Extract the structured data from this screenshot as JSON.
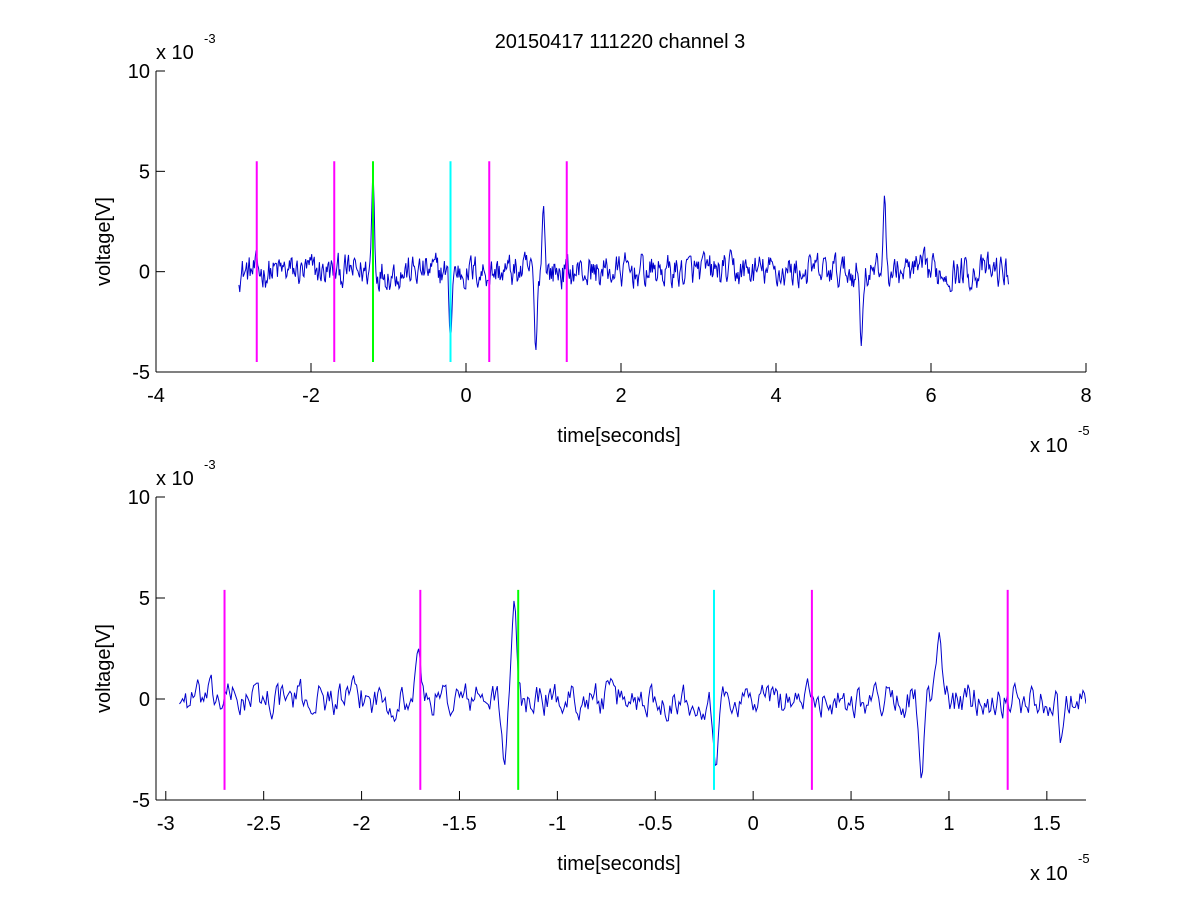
{
  "figure": {
    "title": "20150417 111220 channel 3"
  },
  "chart_data": [
    {
      "type": "line",
      "title": "20150417 111220 channel 3",
      "xlabel": "time[seconds]",
      "ylabel": "voltage[V]",
      "x_exponent_label": "x 10",
      "x_exponent": "-5",
      "y_exponent_label": "x 10",
      "y_exponent": "-3",
      "xlim": [
        -4,
        8
      ],
      "ylim": [
        -5,
        10
      ],
      "xticks": [
        -4,
        -2,
        0,
        2,
        4,
        6,
        8
      ],
      "xtick_labels": [
        "-4",
        "-2",
        "0",
        "2",
        "4",
        "6",
        "8"
      ],
      "yticks": [
        -5,
        0,
        5,
        10
      ],
      "ytick_labels": [
        "-5",
        "0",
        "5",
        "10"
      ],
      "grid": false,
      "signal": {
        "color": "#0000cc",
        "x_range": [
          -2.93,
          7.0
        ],
        "y_range": [
          -3.9,
          4.8
        ],
        "approx_samples": 900,
        "features": [
          {
            "x": -1.2,
            "y": 4.8
          },
          {
            "x": -0.2,
            "y": -3.4
          },
          {
            "x": 0.9,
            "y": -4.0
          },
          {
            "x": 1.0,
            "y": 3.3
          },
          {
            "x": 5.4,
            "y": 3.8
          },
          {
            "x": 5.1,
            "y": -3.7
          }
        ]
      },
      "markers": [
        {
          "x": -2.7,
          "y_range": [
            -4.5,
            5.5
          ],
          "color": "#ff00ff"
        },
        {
          "x": -1.7,
          "y_range": [
            -4.5,
            5.5
          ],
          "color": "#ff00ff"
        },
        {
          "x": -1.2,
          "y_range": [
            -4.5,
            5.5
          ],
          "color": "#00ff00"
        },
        {
          "x": -0.2,
          "y_range": [
            -4.5,
            5.5
          ],
          "color": "#00ffff"
        },
        {
          "x": 0.3,
          "y_range": [
            -4.5,
            5.5
          ],
          "color": "#ff00ff"
        },
        {
          "x": 1.3,
          "y_range": [
            -4.5,
            5.5
          ],
          "color": "#ff00ff"
        }
      ]
    },
    {
      "type": "line",
      "title": "",
      "xlabel": "time[seconds]",
      "ylabel": "voltage[V]",
      "x_exponent_label": "x 10",
      "x_exponent": "-5",
      "y_exponent_label": "x 10",
      "y_exponent": "-3",
      "xlim": [
        -3.05,
        1.7
      ],
      "ylim": [
        -5,
        10
      ],
      "xticks": [
        -3,
        -2.5,
        -2,
        -1.5,
        -1,
        -0.5,
        0,
        0.5,
        1,
        1.5
      ],
      "xtick_labels": [
        "-3",
        "-2.5",
        "-2",
        "-1.5",
        "-1",
        "-0.5",
        "0",
        "0.5",
        "1",
        "1.5"
      ],
      "yticks": [
        -5,
        0,
        5,
        10
      ],
      "ytick_labels": [
        "-5",
        "0",
        "5",
        "10"
      ],
      "grid": false,
      "signal": {
        "color": "#0000cc",
        "x_range": [
          -2.93,
          1.7
        ],
        "y_range": [
          -4.0,
          4.9
        ],
        "approx_samples": 600,
        "features": [
          {
            "x": -1.71,
            "y": 2.5
          },
          {
            "x": -1.27,
            "y": -3.3
          },
          {
            "x": -1.22,
            "y": 4.9
          },
          {
            "x": -0.19,
            "y": -3.4
          },
          {
            "x": 0.86,
            "y": -4.0
          },
          {
            "x": 0.95,
            "y": 3.3
          },
          {
            "x": 1.56,
            "y": 2.0
          },
          {
            "x": 1.57,
            "y": -2.2
          }
        ]
      },
      "markers": [
        {
          "x": -2.7,
          "y_range": [
            -4.5,
            5.4
          ],
          "color": "#ff00ff"
        },
        {
          "x": -1.7,
          "y_range": [
            -4.5,
            5.4
          ],
          "color": "#ff00ff"
        },
        {
          "x": -1.2,
          "y_range": [
            -4.5,
            5.4
          ],
          "color": "#00ff00"
        },
        {
          "x": -0.2,
          "y_range": [
            -4.5,
            5.4
          ],
          "color": "#00ffff"
        },
        {
          "x": 0.3,
          "y_range": [
            -4.5,
            5.4
          ],
          "color": "#ff00ff"
        },
        {
          "x": 1.3,
          "y_range": [
            -4.5,
            5.4
          ],
          "color": "#ff00ff"
        }
      ]
    }
  ]
}
